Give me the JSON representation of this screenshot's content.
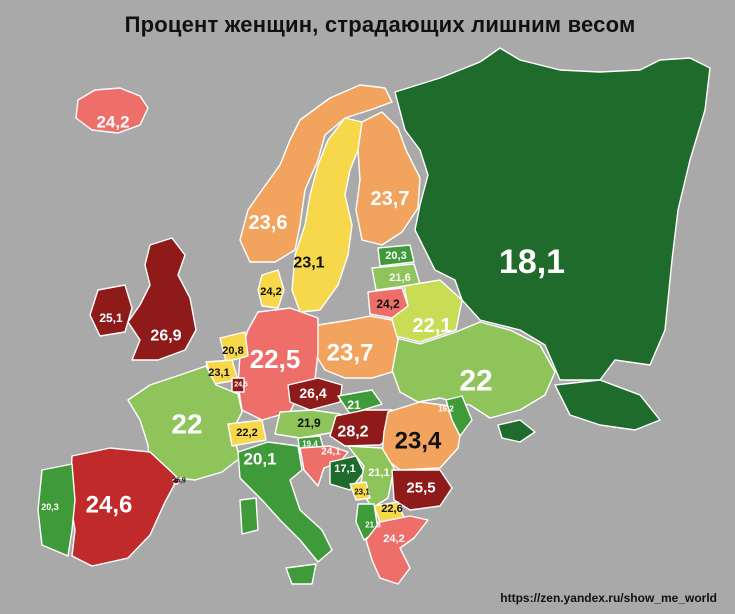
{
  "title": "Процент женщин, страдающих лишним весом",
  "source": "https://zen.yandex.ru/show_me_world",
  "legend_colors": {
    "dark_green": "#1f6b2b",
    "green": "#3f9a3a",
    "light_green": "#8fc45a",
    "yellow": "#f6d84a",
    "orange": "#f2a35e",
    "light_red": "#ee6f6a",
    "red": "#c02a2a",
    "dark_red": "#8e1a1a"
  },
  "regions": [
    {
      "id": "iceland",
      "value": "24,2"
    },
    {
      "id": "norway",
      "value": "23,6"
    },
    {
      "id": "sweden",
      "value": "23,1"
    },
    {
      "id": "finland",
      "value": "23,7"
    },
    {
      "id": "russia",
      "value": "18,1"
    },
    {
      "id": "estonia",
      "value": "20,3"
    },
    {
      "id": "latvia",
      "value": "21,6"
    },
    {
      "id": "lithuania",
      "value": "24,2"
    },
    {
      "id": "belarus",
      "value": "22,1"
    },
    {
      "id": "ukraine",
      "value": "22"
    },
    {
      "id": "poland",
      "value": "23,7"
    },
    {
      "id": "germany",
      "value": "24,2"
    },
    {
      "id": "denmark",
      "value": "22,5"
    },
    {
      "id": "uk",
      "value": "26,9"
    },
    {
      "id": "ireland",
      "value": "25,1"
    },
    {
      "id": "netherlands",
      "value": "20,8"
    },
    {
      "id": "belgium",
      "value": "23,1"
    },
    {
      "id": "luxembourg",
      "value": "24,5"
    },
    {
      "id": "france",
      "value": "22"
    },
    {
      "id": "switzerland",
      "value": "22,2"
    },
    {
      "id": "czechia",
      "value": "26,4"
    },
    {
      "id": "slovakia",
      "value": "21"
    },
    {
      "id": "austria",
      "value": "21,9"
    },
    {
      "id": "hungary",
      "value": "28,2"
    },
    {
      "id": "slovenia",
      "value": "19,4"
    },
    {
      "id": "romania",
      "value": "23,4"
    },
    {
      "id": "moldova",
      "value": "16,2"
    },
    {
      "id": "croatia",
      "value": "24,1"
    },
    {
      "id": "bosnia",
      "value": "17,1"
    },
    {
      "id": "serbia",
      "value": "21,1"
    },
    {
      "id": "bulgaria",
      "value": "25,5"
    },
    {
      "id": "montenegro",
      "value": "23,1"
    },
    {
      "id": "north_macedonia",
      "value": "22,6"
    },
    {
      "id": "albania",
      "value": "21,6"
    },
    {
      "id": "greece",
      "value": "24,2"
    },
    {
      "id": "italy",
      "value": "20,1"
    },
    {
      "id": "spain",
      "value": "24,6"
    },
    {
      "id": "portugal",
      "value": "20,3"
    },
    {
      "id": "andorra",
      "value": "25,9"
    }
  ]
}
